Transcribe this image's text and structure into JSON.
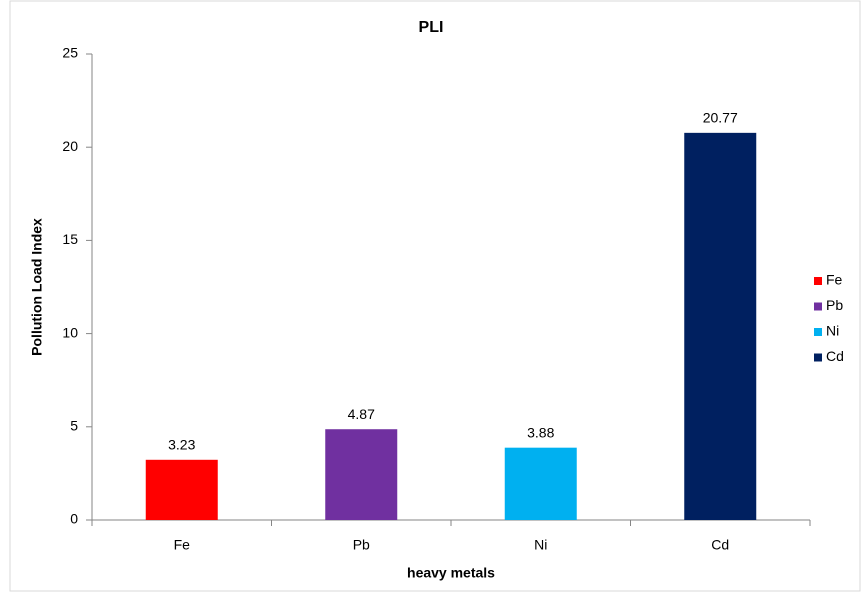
{
  "chart_data": {
    "type": "bar",
    "title": "PLI",
    "x_label": "heavy metals",
    "y_label": "Pollution Load Index",
    "categories": [
      "Fe",
      "Pb",
      "Ni",
      "Cd"
    ],
    "values": [
      3.23,
      4.87,
      3.88,
      20.77
    ],
    "colors": [
      "#ff0000",
      "#7030a0",
      "#00b0f0",
      "#002060"
    ],
    "ylim": [
      0,
      25
    ],
    "yticks": [
      0,
      5,
      10,
      15,
      20,
      25
    ],
    "grid": false,
    "legend": "right"
  }
}
